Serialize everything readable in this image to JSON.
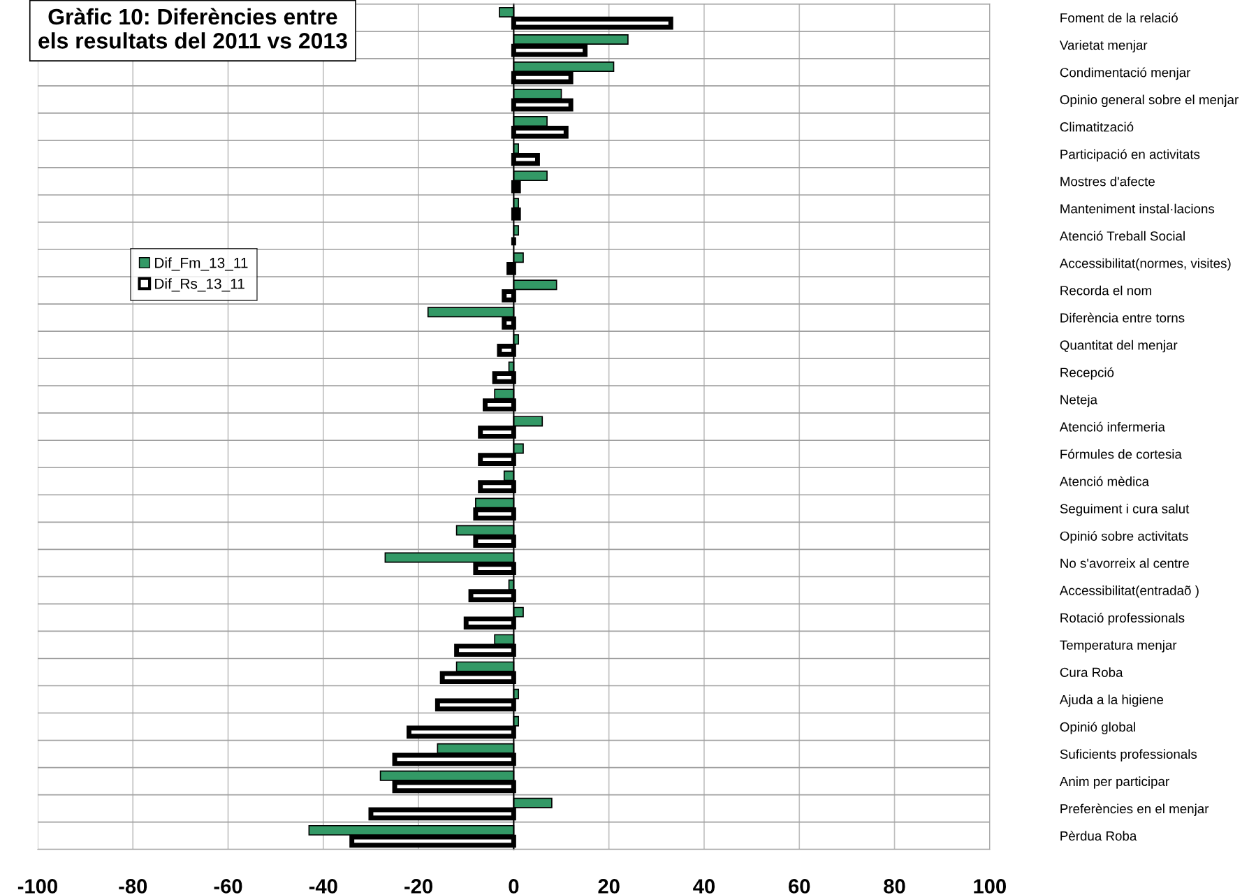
{
  "chart_data": {
    "type": "bar",
    "orientation": "horizontal",
    "title": "Gràfic 10: Diferències entre els resultats del 2011 vs 2013",
    "categories": [
      "Foment de la relació",
      "Varietat menjar",
      "Condimentació menjar",
      "Opinio general sobre el menjar",
      "Climatització",
      "Participació en activitats",
      "Mostres d'afecte",
      "Manteniment instal·lacions",
      "Atenció Treball Social",
      "Accessibilitat(normes, visites)",
      "Recorda el nom",
      "Diferència entre torns",
      "Quantitat del menjar",
      "Recepció",
      "Neteja",
      "Atenció infermeria",
      "Fórmules de cortesia",
      "Atenció mèdica",
      "Seguiment i cura salut",
      "Opinió sobre activitats",
      "No s'avorreix al centre",
      "Accessibilitat(entradaõ )",
      "Rotació professionals",
      "Temperatura menjar",
      "Cura Roba",
      "Ajuda a la higiene",
      "Opinió global",
      "Suficients professionals",
      "Anim per participar",
      "Preferències en el menjar",
      "Pèrdua Roba"
    ],
    "series": [
      {
        "name": "Dif_Fm_13_11",
        "color": "#339966",
        "values": [
          -3,
          24,
          21,
          10,
          7,
          1,
          7,
          1,
          1,
          2,
          9,
          -18,
          1,
          -1,
          -4,
          6,
          2,
          -2,
          -8,
          -12,
          -27,
          -1,
          2,
          -4,
          -12,
          1,
          1,
          -16,
          -28,
          8,
          -43
        ]
      },
      {
        "name": "Dif_Rs_13_11",
        "color": "#000000",
        "values": [
          33,
          15,
          12,
          12,
          11,
          5,
          1,
          1,
          0,
          -1,
          -2,
          -2,
          -3,
          -4,
          -6,
          -7,
          -7,
          -7,
          -8,
          -8,
          -8,
          -9,
          -10,
          -12,
          -15,
          -16,
          -22,
          -25,
          -25,
          -30,
          -34
        ]
      }
    ],
    "xlim": [
      -100,
      100
    ],
    "xticks": [
      -100,
      -80,
      -60,
      -40,
      -20,
      0,
      20,
      40,
      60,
      80,
      100
    ],
    "grid": true,
    "legend": "left"
  }
}
